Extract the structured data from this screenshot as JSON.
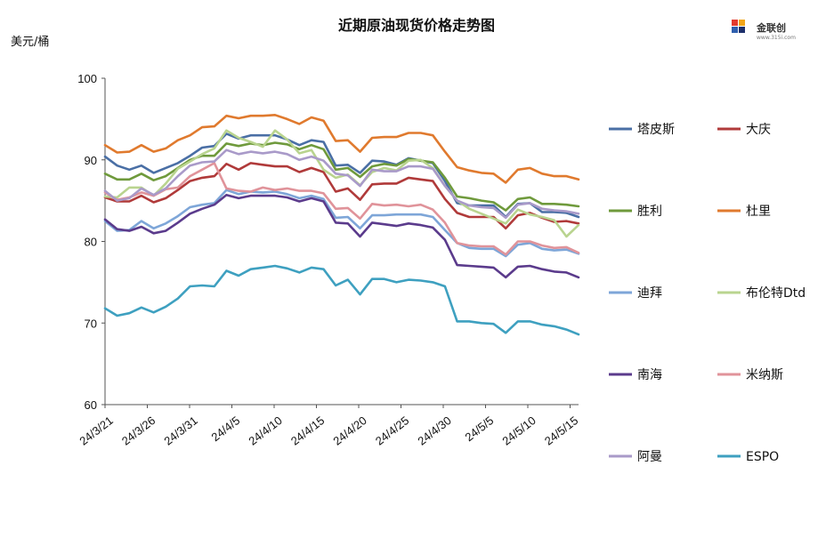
{
  "header": {
    "title": "近期原油现货价格走势图",
    "unit": "美元/桶"
  },
  "logo": {
    "text": "金联创",
    "sub": "www.315i.com"
  },
  "chart_data": {
    "type": "line",
    "title": "近期原油现货价格走势图",
    "ylabel": "美元/桶",
    "xlabel": "",
    "ylim": [
      60,
      100
    ],
    "yticks": [
      60,
      70,
      80,
      90,
      100
    ],
    "xticks": [
      "24/3/21",
      "24/3/26",
      "24/3/31",
      "24/4/5",
      "24/4/10",
      "24/4/15",
      "24/4/20",
      "24/4/25",
      "24/4/30",
      "24/5/5",
      "24/5/10",
      "24/5/15"
    ],
    "grid": false,
    "legend": "right",
    "x": [
      "24/3/21",
      "24/3/22",
      "24/3/25",
      "24/3/26",
      "24/3/27",
      "24/3/28",
      "24/4/1",
      "24/4/2",
      "24/4/3",
      "24/4/4",
      "24/4/5",
      "24/4/8",
      "24/4/9",
      "24/4/10",
      "24/4/11",
      "24/4/12",
      "24/4/15",
      "24/4/16",
      "24/4/17",
      "24/4/18",
      "24/4/19",
      "24/4/22",
      "24/4/23",
      "24/4/24",
      "24/4/25",
      "24/4/26",
      "24/4/29",
      "24/4/30",
      "24/5/1",
      "24/5/2",
      "24/5/3",
      "24/5/6",
      "24/5/7",
      "24/5/8",
      "24/5/9",
      "24/5/10",
      "24/5/13",
      "24/5/14",
      "24/5/15",
      "24/5/16"
    ],
    "series": [
      {
        "name": "塔皮斯",
        "color": "#4a6fa5",
        "values": [
          90.4,
          89.3,
          88.8,
          89.3,
          88.4,
          89.0,
          89.6,
          90.5,
          91.5,
          91.7,
          93.2,
          92.6,
          93.0,
          93.0,
          93.0,
          92.5,
          91.8,
          92.4,
          92.2,
          89.3,
          89.4,
          88.4,
          89.9,
          89.8,
          89.4,
          90.2,
          89.9,
          89.6,
          87.4,
          84.7,
          84.4,
          84.4,
          84.4,
          83.0,
          84.6,
          84.7,
          83.6,
          83.6,
          83.5,
          83.0
        ]
      },
      {
        "name": "大庆",
        "color": "#b03a3a",
        "values": [
          85.4,
          84.9,
          84.9,
          85.6,
          84.8,
          85.3,
          86.3,
          87.4,
          87.8,
          88.0,
          89.5,
          88.8,
          89.6,
          89.4,
          89.2,
          89.2,
          88.5,
          89.0,
          88.5,
          86.1,
          86.5,
          85.1,
          87.0,
          87.1,
          87.1,
          87.8,
          87.6,
          87.4,
          85.2,
          83.5,
          83.0,
          83.0,
          83.0,
          81.6,
          83.2,
          83.5,
          82.9,
          82.4,
          82.5,
          82.2
        ]
      },
      {
        "name": "胜利",
        "color": "#6f9a3c",
        "values": [
          88.3,
          87.6,
          87.6,
          88.3,
          87.5,
          88.0,
          89.0,
          90.0,
          90.5,
          90.5,
          92.0,
          91.7,
          92.0,
          91.8,
          92.1,
          91.9,
          91.3,
          91.8,
          91.3,
          88.8,
          89.0,
          87.9,
          89.2,
          89.5,
          89.3,
          90.1,
          89.9,
          89.7,
          87.8,
          85.5,
          85.3,
          85.0,
          84.8,
          83.8,
          85.2,
          85.4,
          84.6,
          84.6,
          84.5,
          84.3
        ]
      },
      {
        "name": "杜里",
        "color": "#e07a2e",
        "values": [
          91.8,
          90.9,
          91.0,
          91.8,
          91.0,
          91.4,
          92.4,
          93.0,
          94.0,
          94.1,
          95.4,
          95.1,
          95.4,
          95.4,
          95.5,
          95.0,
          94.4,
          95.2,
          94.8,
          92.3,
          92.4,
          91.0,
          92.7,
          92.8,
          92.8,
          93.3,
          93.3,
          93.0,
          91.0,
          89.1,
          88.7,
          88.4,
          88.3,
          87.2,
          88.8,
          89.0,
          88.3,
          88.0,
          88.0,
          87.6
        ]
      },
      {
        "name": "迪拜",
        "color": "#7ea6d8",
        "values": [
          82.5,
          81.3,
          81.4,
          82.5,
          81.6,
          82.2,
          83.1,
          84.2,
          84.5,
          84.7,
          86.3,
          85.8,
          86.1,
          86.0,
          86.1,
          85.8,
          85.3,
          85.6,
          85.2,
          82.9,
          83.0,
          81.6,
          83.2,
          83.2,
          83.3,
          83.3,
          83.3,
          83.0,
          81.4,
          79.8,
          79.2,
          79.1,
          79.1,
          78.2,
          79.6,
          79.8,
          79.1,
          78.9,
          79.0,
          78.5
        ]
      },
      {
        "name": "布伦特Dtd",
        "color": "#b9d48f",
        "values": [
          85.5,
          85.4,
          86.6,
          86.6,
          85.6,
          87.1,
          88.9,
          89.8,
          90.7,
          91.4,
          93.6,
          92.7,
          92.2,
          91.6,
          93.6,
          92.5,
          90.8,
          91.2,
          88.8,
          87.8,
          88.2,
          86.9,
          88.5,
          89.0,
          88.7,
          89.9,
          90.0,
          89.0,
          86.8,
          85.0,
          84.0,
          83.4,
          82.8,
          82.2,
          83.9,
          83.3,
          83.0,
          82.6,
          80.6,
          82.0
        ]
      },
      {
        "name": "南海",
        "color": "#5b3b8c",
        "values": [
          82.7,
          81.5,
          81.3,
          81.8,
          81.0,
          81.3,
          82.3,
          83.4,
          84.0,
          84.5,
          85.7,
          85.3,
          85.6,
          85.6,
          85.6,
          85.4,
          84.9,
          85.3,
          84.9,
          82.3,
          82.2,
          80.6,
          82.3,
          82.1,
          81.9,
          82.2,
          82.0,
          81.7,
          80.2,
          77.1,
          77.0,
          76.9,
          76.8,
          75.6,
          76.9,
          77.0,
          76.6,
          76.3,
          76.2,
          75.6
        ]
      },
      {
        "name": "米纳斯",
        "color": "#e0939a",
        "values": [
          86.0,
          85.1,
          85.4,
          86.0,
          85.6,
          86.4,
          86.6,
          88.0,
          88.8,
          89.6,
          86.5,
          86.2,
          86.1,
          86.6,
          86.3,
          86.5,
          86.2,
          86.2,
          85.9,
          84.0,
          84.1,
          82.8,
          84.6,
          84.4,
          84.5,
          84.3,
          84.5,
          83.9,
          82.3,
          79.8,
          79.5,
          79.4,
          79.4,
          78.4,
          80.0,
          80.0,
          79.5,
          79.2,
          79.3,
          78.6
        ]
      },
      {
        "name": "阿曼",
        "color": "#a99ac9",
        "values": [
          86.2,
          85.0,
          85.3,
          86.5,
          85.7,
          86.5,
          88.0,
          89.3,
          89.7,
          89.8,
          91.2,
          90.7,
          91.0,
          90.8,
          91.0,
          90.7,
          90.0,
          90.4,
          89.9,
          88.3,
          88.1,
          86.8,
          88.8,
          88.6,
          88.6,
          89.2,
          89.2,
          88.9,
          86.8,
          85.0,
          84.4,
          84.2,
          84.1,
          82.9,
          84.5,
          84.7,
          84.0,
          83.8,
          83.7,
          83.4
        ]
      },
      {
        "name": "ESPO",
        "color": "#3ea0c0",
        "values": [
          71.8,
          70.9,
          71.2,
          71.9,
          71.3,
          72.0,
          73.0,
          74.5,
          74.6,
          74.5,
          76.4,
          75.8,
          76.6,
          76.8,
          77.0,
          76.7,
          76.2,
          76.8,
          76.6,
          74.6,
          75.3,
          73.5,
          75.4,
          75.4,
          75.0,
          75.3,
          75.2,
          75.0,
          74.5,
          70.2,
          70.2,
          70.0,
          69.9,
          68.8,
          70.2,
          70.2,
          69.8,
          69.6,
          69.2,
          68.6
        ]
      }
    ]
  }
}
